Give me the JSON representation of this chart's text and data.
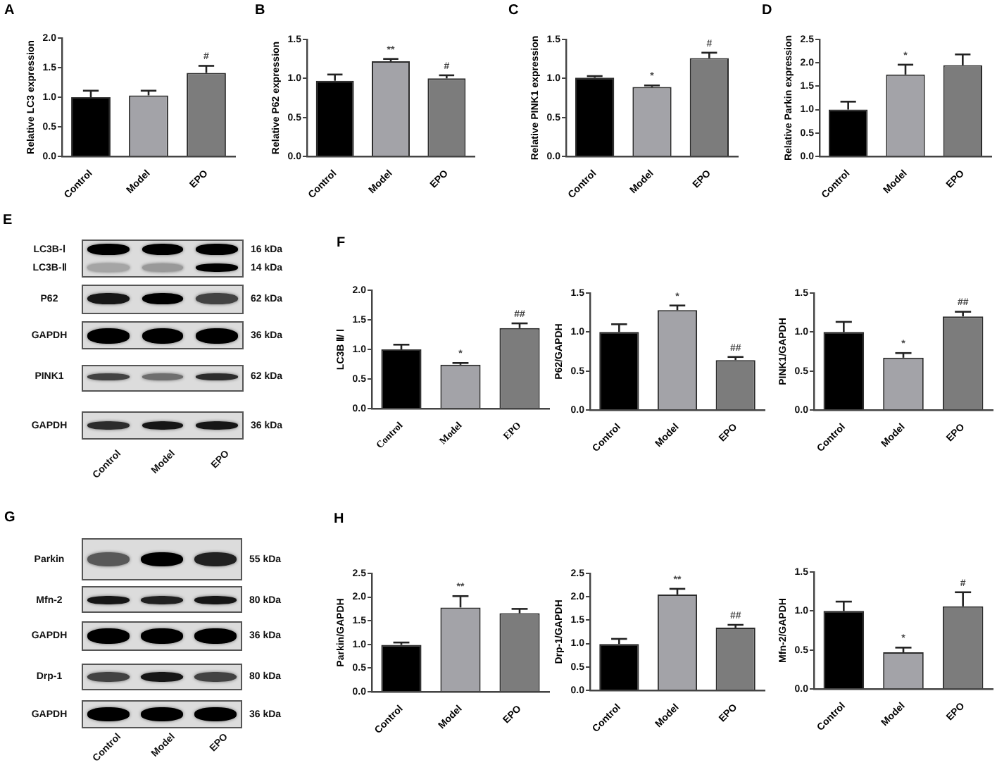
{
  "chart_data": [
    {
      "type": "bar",
      "title": "A",
      "ylabel": "Relative LC3 expression",
      "categories": [
        "Control",
        "Model",
        "EPO"
      ],
      "values": [
        1.0,
        1.03,
        1.41
      ],
      "colors": [
        "#000000",
        "#a3a3a8",
        "#7c7c7c"
      ],
      "errors": [
        [
          1.0,
          1.11
        ],
        [
          1.03,
          1.11
        ],
        [
          1.41,
          1.53
        ]
      ],
      "ylim": [
        0,
        2
      ],
      "yticks": [
        {
          "value": 0,
          "label": "0.0"
        },
        {
          "value": 0.5,
          "label": "0.5"
        },
        {
          "value": 1,
          "label": "1.0"
        },
        {
          "value": 1.5,
          "label": "1.5"
        },
        {
          "value": 2,
          "label": "2.0"
        }
      ],
      "annotations": [
        {
          "text": "#",
          "x": "EPO",
          "y": 1.53
        }
      ]
    },
    {
      "type": "bar",
      "title": "B",
      "ylabel": "Relative P62 expression",
      "categories": [
        "Control",
        "Model",
        "EPO"
      ],
      "values": [
        0.97,
        1.22,
        1.0
      ],
      "colors": [
        "#000000",
        "#a3a3a8",
        "#7c7c7c"
      ],
      "errors": [
        [
          0.97,
          1.05
        ],
        [
          1.22,
          1.25
        ],
        [
          1.0,
          1.04
        ]
      ],
      "ylim": [
        0,
        1.5
      ],
      "yticks": [
        {
          "value": 0,
          "label": "0.0"
        },
        {
          "value": 0.5,
          "label": "0.5"
        },
        {
          "value": 1,
          "label": "1.0"
        },
        {
          "value": 1.5,
          "label": "1.5"
        }
      ],
      "annotations": [
        {
          "text": "**",
          "x": "Model",
          "y": 1.25
        },
        {
          "text": "#",
          "x": "EPO",
          "y": 1.04
        }
      ]
    },
    {
      "type": "bar",
      "title": "C",
      "ylabel": "Relative PINK1 expression",
      "categories": [
        "Control",
        "Model",
        "EPO"
      ],
      "values": [
        1.01,
        0.89,
        1.26
      ],
      "colors": [
        "#000000",
        "#a3a3a8",
        "#7c7c7c"
      ],
      "errors": [
        [
          1.01,
          1.03
        ],
        [
          0.89,
          0.91
        ],
        [
          1.26,
          1.33
        ]
      ],
      "ylim": [
        0,
        1.5
      ],
      "yticks": [
        {
          "value": 0,
          "label": "0.0"
        },
        {
          "value": 0.5,
          "label": "0.5"
        },
        {
          "value": 1,
          "label": "1.0"
        },
        {
          "value": 1.5,
          "label": "1.5"
        }
      ],
      "annotations": [
        {
          "text": "*",
          "x": "Model",
          "y": 0.91
        },
        {
          "text": "#",
          "x": "EPO",
          "y": 1.33
        }
      ]
    },
    {
      "type": "bar",
      "title": "D",
      "ylabel": "Relative Parkin expression",
      "categories": [
        "Control",
        "Model",
        "EPO"
      ],
      "values": [
        1.0,
        1.75,
        1.95
      ],
      "colors": [
        "#000000",
        "#a3a3a8",
        "#7c7c7c"
      ],
      "errors": [
        [
          1.0,
          1.17
        ],
        [
          1.75,
          1.96
        ],
        [
          1.95,
          2.18
        ]
      ],
      "ylim": [
        0,
        2.5
      ],
      "yticks": [
        {
          "value": 0,
          "label": "0.0"
        },
        {
          "value": 0.5,
          "label": "0.5"
        },
        {
          "value": 1,
          "label": "1.0"
        },
        {
          "value": 1.5,
          "label": "1.5"
        },
        {
          "value": 2,
          "label": "2.0"
        },
        {
          "value": 2.5,
          "label": "2.5"
        }
      ],
      "annotations": [
        {
          "text": "*",
          "x": "Model",
          "y": 1.96
        }
      ]
    },
    {
      "type": "other",
      "title": "E",
      "categories": [
        "Control",
        "Model",
        "EPO"
      ],
      "y_categories": [
        "LC3B-Ⅰ",
        "LC3B-Ⅱ",
        "P62",
        "GAPDH",
        "PINK1",
        "GAPDH"
      ],
      "y2_categories": [
        "16 kDa",
        "14 kDa",
        "62 kDa",
        "36 kDa",
        "62 kDa",
        "36 kDa"
      ]
    },
    {
      "type": "bar",
      "title": "F",
      "ylabel": "LC3B Ⅱ/ Ⅰ",
      "categories": [
        "Control",
        "Model",
        "EPO"
      ],
      "values": [
        1.0,
        0.74,
        1.36
      ],
      "colors": [
        "#000000",
        "#a3a3a8",
        "#7c7c7c"
      ],
      "errors": [
        [
          1.0,
          1.08
        ],
        [
          0.74,
          0.77
        ],
        [
          1.36,
          1.44
        ]
      ],
      "ylim": [
        0,
        2
      ],
      "yticks": [
        {
          "value": 0,
          "label": "0.0"
        },
        {
          "value": 0.5,
          "label": "0.5"
        },
        {
          "value": 1,
          "label": "1.0"
        },
        {
          "value": 1.5,
          "label": "1.5"
        },
        {
          "value": 2,
          "label": "2.0"
        }
      ],
      "annotations": [
        {
          "text": "*",
          "x": "Model",
          "y": 0.77
        },
        {
          "text": "##",
          "x": "EPO",
          "y": 1.44
        }
      ]
    },
    {
      "type": "bar",
      "ylabel": "P62/GAPDH",
      "categories": [
        "Control",
        "Model",
        "EPO"
      ],
      "values": [
        1.0,
        1.28,
        0.64
      ],
      "colors": [
        "#000000",
        "#a3a3a8",
        "#7c7c7c"
      ],
      "errors": [
        [
          1.0,
          1.1
        ],
        [
          1.28,
          1.34
        ],
        [
          0.64,
          0.68
        ]
      ],
      "ylim": [
        0,
        1.5
      ],
      "yticks": [
        {
          "value": 0,
          "label": "0.0"
        },
        {
          "value": 0.5,
          "label": "0.5"
        },
        {
          "value": 1,
          "label": "1.0"
        },
        {
          "value": 1.5,
          "label": "1.5"
        }
      ],
      "annotations": [
        {
          "text": "*",
          "x": "Model",
          "y": 1.34
        },
        {
          "text": "##",
          "x": "EPO",
          "y": 0.68
        }
      ]
    },
    {
      "type": "bar",
      "ylabel": "PINK1/GAPDH",
      "categories": [
        "Control",
        "Model",
        "EPO"
      ],
      "values": [
        1.0,
        0.67,
        1.2
      ],
      "colors": [
        "#000000",
        "#a3a3a8",
        "#7c7c7c"
      ],
      "errors": [
        [
          1.0,
          1.13
        ],
        [
          0.67,
          0.73
        ],
        [
          1.2,
          1.26
        ]
      ],
      "ylim": [
        0,
        1.5
      ],
      "yticks": [
        {
          "value": 0,
          "label": "0.0"
        },
        {
          "value": 0.5,
          "label": "0.5"
        },
        {
          "value": 1,
          "label": "1.0"
        },
        {
          "value": 1.5,
          "label": "1.5"
        }
      ],
      "annotations": [
        {
          "text": "*",
          "x": "Model",
          "y": 0.73
        },
        {
          "text": "##",
          "x": "EPO",
          "y": 1.26
        }
      ]
    },
    {
      "type": "other",
      "title": "G",
      "categories": [
        "Control",
        "Model",
        "EPO"
      ],
      "y_categories": [
        "Parkin",
        "Mfn-2",
        "GAPDH",
        "Drp-1",
        "GAPDH"
      ],
      "y2_categories": [
        "55 kDa",
        "80 kDa",
        "36 kDa",
        "80 kDa",
        "36 kDa"
      ]
    },
    {
      "type": "bar",
      "title": "H",
      "ylabel": "Parkin/GAPDH",
      "categories": [
        "Control",
        "Model",
        "EPO"
      ],
      "values": [
        0.99,
        1.78,
        1.66
      ],
      "colors": [
        "#000000",
        "#a3a3a8",
        "#7c7c7c"
      ],
      "errors": [
        [
          0.99,
          1.04
        ],
        [
          1.78,
          2.02
        ],
        [
          1.66,
          1.75
        ]
      ],
      "ylim": [
        0,
        2.5
      ],
      "yticks": [
        {
          "value": 0,
          "label": "0.0"
        },
        {
          "value": 0.5,
          "label": "0.5"
        },
        {
          "value": 1,
          "label": "1.0"
        },
        {
          "value": 1.5,
          "label": "1.5"
        },
        {
          "value": 2,
          "label": "2.0"
        },
        {
          "value": 2.5,
          "label": "2.5"
        }
      ],
      "annotations": [
        {
          "text": "**",
          "x": "Model",
          "y": 2.02
        }
      ]
    },
    {
      "type": "bar",
      "ylabel": "Drp-1/GAPDH",
      "categories": [
        "Control",
        "Model",
        "EPO"
      ],
      "values": [
        0.99,
        2.05,
        1.34
      ],
      "colors": [
        "#000000",
        "#a3a3a8",
        "#7c7c7c"
      ],
      "errors": [
        [
          0.99,
          1.1
        ],
        [
          2.05,
          2.17
        ],
        [
          1.34,
          1.4
        ]
      ],
      "ylim": [
        0,
        2.5
      ],
      "yticks": [
        {
          "value": 0,
          "label": "0.0"
        },
        {
          "value": 0.5,
          "label": "0.5"
        },
        {
          "value": 1,
          "label": "1.0"
        },
        {
          "value": 1.5,
          "label": "1.5"
        },
        {
          "value": 2,
          "label": "2.0"
        },
        {
          "value": 2.5,
          "label": "2.5"
        }
      ],
      "annotations": [
        {
          "text": "**",
          "x": "Model",
          "y": 2.17
        },
        {
          "text": "##",
          "x": "EPO",
          "y": 1.4
        }
      ]
    },
    {
      "type": "bar",
      "ylabel": "Mfn-2/GAPDH",
      "categories": [
        "Control",
        "Model",
        "EPO"
      ],
      "values": [
        1.0,
        0.47,
        1.06
      ],
      "colors": [
        "#000000",
        "#a3a3a8",
        "#7c7c7c"
      ],
      "errors": [
        [
          1.0,
          1.12
        ],
        [
          0.47,
          0.53
        ],
        [
          1.06,
          1.24
        ]
      ],
      "ylim": [
        0,
        1.5
      ],
      "yticks": [
        {
          "value": 0,
          "label": "0.0"
        },
        {
          "value": 0.5,
          "label": "0.5"
        },
        {
          "value": 1,
          "label": "1.0"
        },
        {
          "value": 1.5,
          "label": "1.5"
        }
      ],
      "annotations": [
        {
          "text": "*",
          "x": "Model",
          "y": 0.53
        },
        {
          "text": "#",
          "x": "EPO",
          "y": 1.24
        }
      ]
    }
  ]
}
